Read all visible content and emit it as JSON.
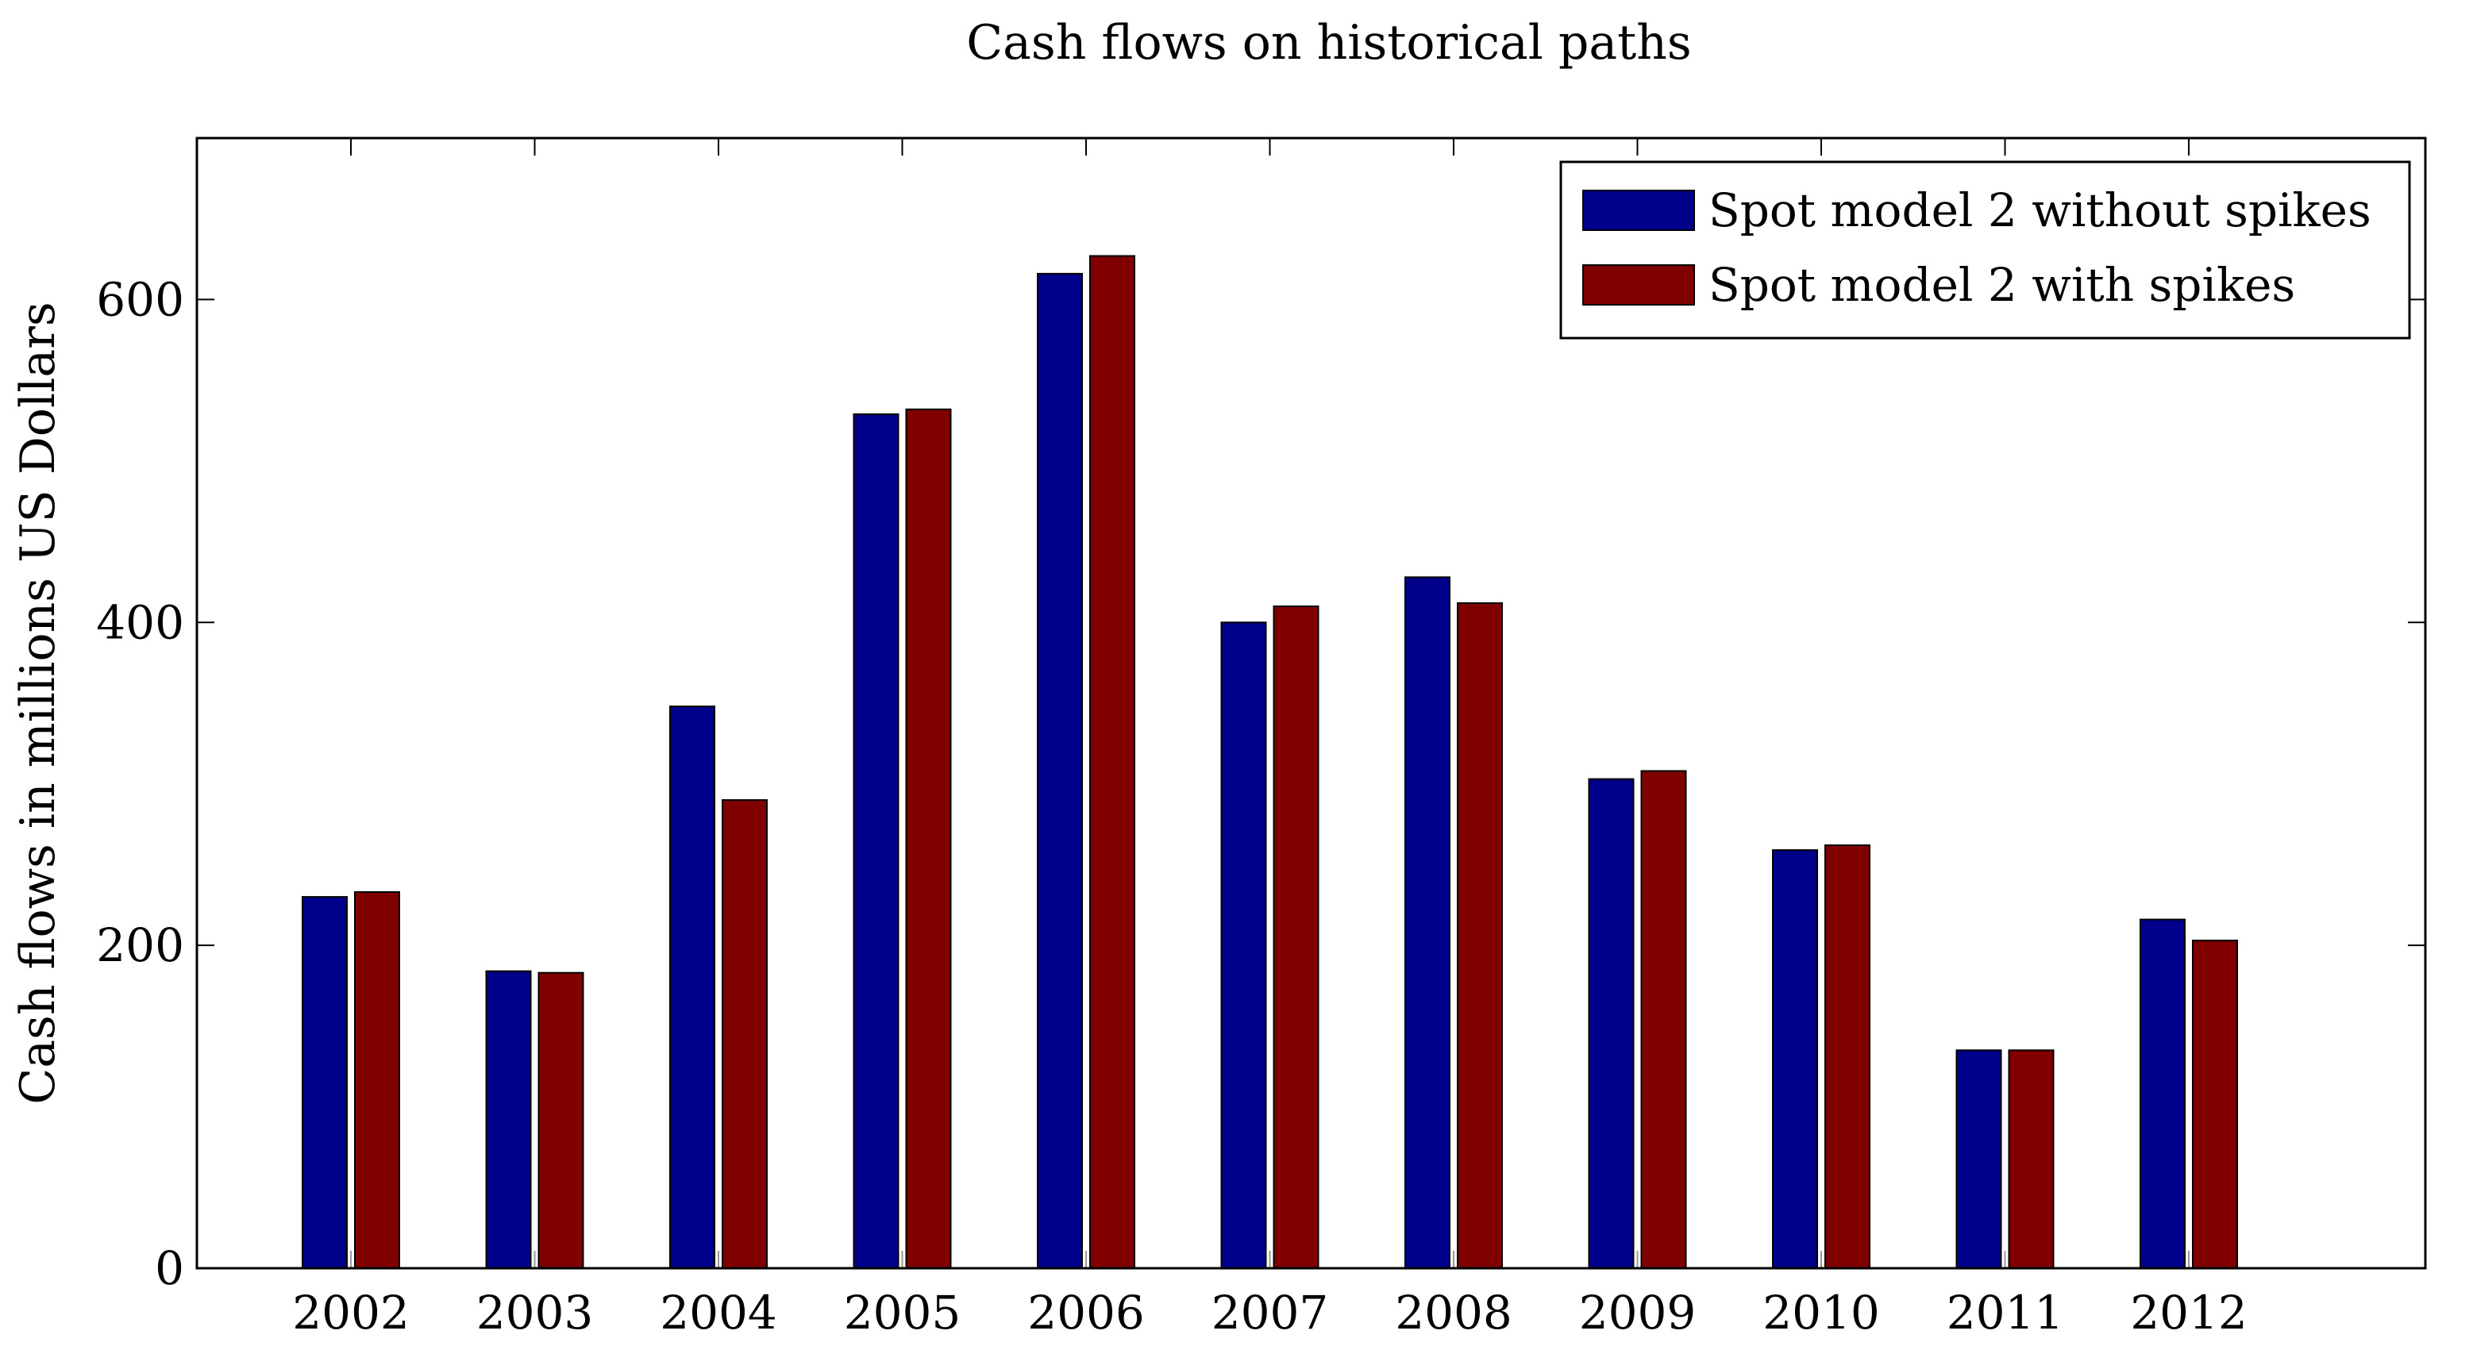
{
  "chart_data": {
    "type": "bar",
    "title": "Cash flows on historical paths",
    "xlabel": "",
    "ylabel": "Cash flows in millions US Dollars",
    "categories": [
      "2002",
      "2003",
      "2004",
      "2005",
      "2006",
      "2007",
      "2008",
      "2009",
      "2010",
      "2011",
      "2012"
    ],
    "series": [
      {
        "name": "Spot model 2 without spikes",
        "color": "#00008b",
        "values": [
          230,
          184,
          348,
          529,
          616,
          400,
          428,
          303,
          259,
          135,
          216
        ]
      },
      {
        "name": "Spot model 2 with spikes",
        "color": "#800000",
        "values": [
          233,
          183,
          290,
          532,
          627,
          410,
          412,
          308,
          262,
          135,
          203
        ]
      }
    ],
    "ylim": [
      0,
      700
    ],
    "yticks": [
      0,
      200,
      400,
      600
    ],
    "grid": false,
    "legend_position": "top-right"
  }
}
